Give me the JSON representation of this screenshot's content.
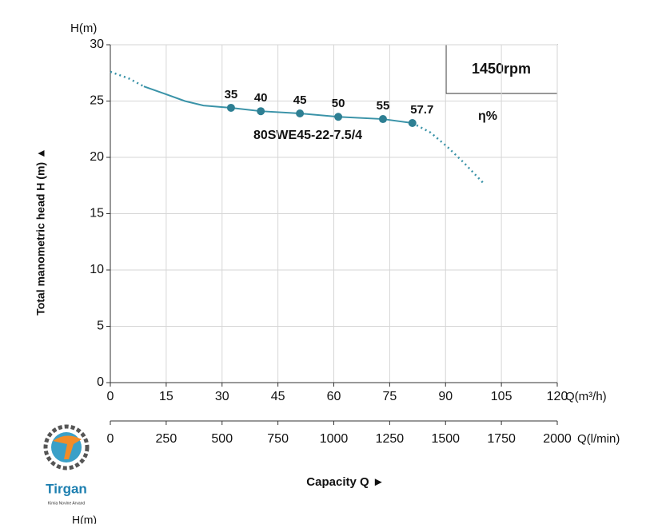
{
  "chart_data": {
    "type": "line",
    "y_axis_unit": "H(m)",
    "y_title": "Total manometric head H (m) ▲",
    "x_unit": "Q(m³/h)",
    "x2_unit": "Q(l/min)",
    "x_title": "Capacity Q ►",
    "speed": "1450rpm",
    "model": "80SWE45-22-7.5/4",
    "efficiency_label": "η%",
    "xlim": [
      0,
      120
    ],
    "xticks": [
      0,
      15,
      30,
      45,
      60,
      75,
      90,
      105,
      120
    ],
    "x2lim": [
      0,
      2000
    ],
    "x2ticks": [
      0,
      250,
      500,
      750,
      1000,
      1250,
      1500,
      1750,
      2000
    ],
    "ylim": [
      0,
      30
    ],
    "yticks": [
      0,
      5,
      10,
      15,
      20,
      25,
      30
    ],
    "grid": true,
    "series": [
      {
        "name": "dotted-low",
        "color": "#3a93a8",
        "dashed": true,
        "x": [
          0,
          5,
          9
        ],
        "values": [
          27.6,
          27.0,
          26.3
        ]
      },
      {
        "name": "operating",
        "color": "#3a93a8",
        "dashed": false,
        "x": [
          9,
          15,
          20,
          25,
          32.4,
          40.4,
          50.9,
          61.2,
          73.2,
          81.1
        ],
        "values": [
          26.3,
          25.6,
          25.0,
          24.6,
          24.4,
          24.1,
          23.9,
          23.6,
          23.4,
          23.05
        ]
      },
      {
        "name": "dotted-high",
        "color": "#3a93a8",
        "dashed": true,
        "x": [
          81.1,
          86,
          90.6,
          95,
          100.2
        ],
        "values": [
          23.05,
          22.2,
          20.9,
          19.5,
          17.7
        ]
      }
    ],
    "points": {
      "color": "#2e7f93",
      "x": [
        32.4,
        40.4,
        50.9,
        61.2,
        73.2,
        81.1
      ],
      "values": [
        24.4,
        24.1,
        23.9,
        23.6,
        23.4,
        23.05
      ],
      "efficiency": [
        35,
        40,
        45,
        50,
        55,
        57.7
      ]
    }
  },
  "logo": {
    "name": "Tirgan",
    "subtitle": "Kimia Novine Arvand"
  },
  "footer": {
    "next_axis": "H(m)"
  }
}
